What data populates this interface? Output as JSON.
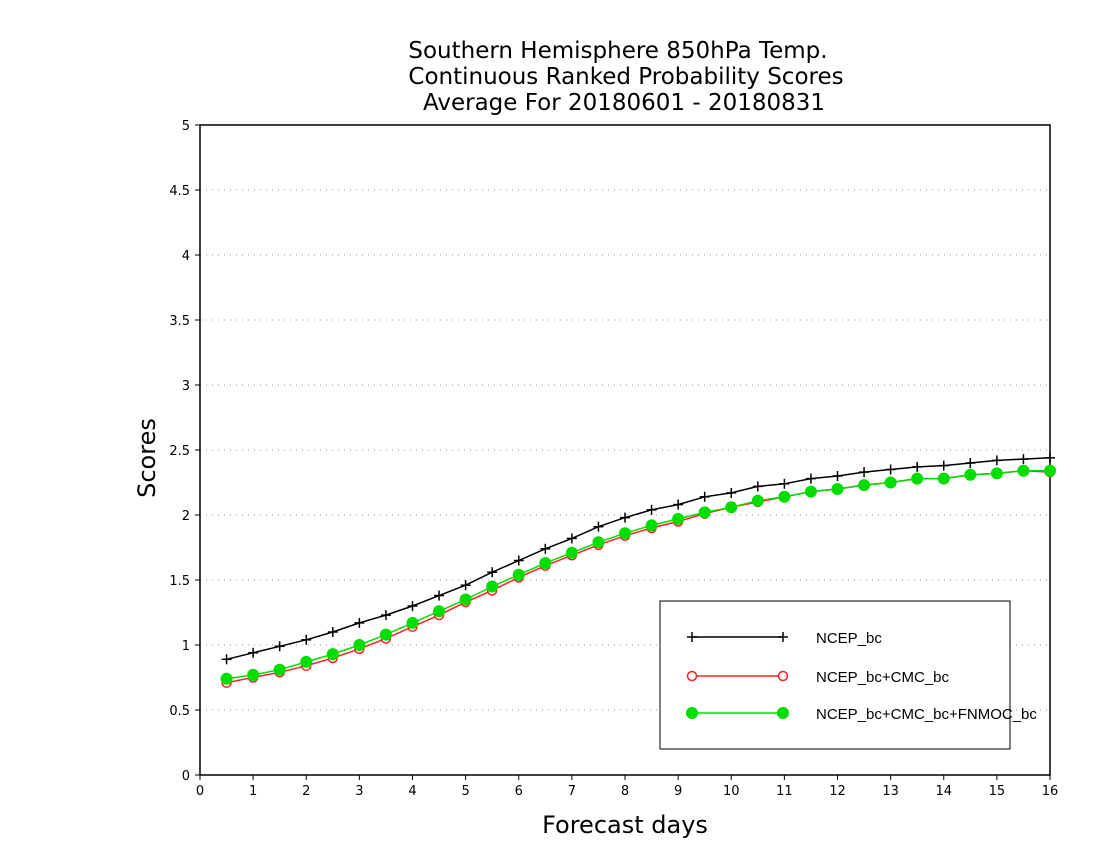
{
  "chart_data": {
    "type": "line",
    "title": [
      "Southern Hemisphere 850hPa Temp.",
      "Continuous Ranked Probability Scores",
      "Average For 20180601 - 20180831"
    ],
    "xlabel": "Forecast days",
    "ylabel": "Scores",
    "xlim": [
      0,
      16
    ],
    "ylim": [
      0,
      5
    ],
    "x_ticks": [
      "0",
      "1",
      "2",
      "3",
      "4",
      "5",
      "6",
      "7",
      "8",
      "9",
      "10",
      "11",
      "12",
      "13",
      "14",
      "15",
      "16"
    ],
    "y_ticks": [
      "0",
      "0.5",
      "1",
      "1.5",
      "2",
      "2.5",
      "3",
      "3.5",
      "4",
      "4.5",
      "5"
    ],
    "grid": true,
    "legend_position": "bottom-right",
    "x": [
      0.5,
      1,
      1.5,
      2,
      2.5,
      3,
      3.5,
      4,
      4.5,
      5,
      5.5,
      6,
      6.5,
      7,
      7.5,
      8,
      8.5,
      9,
      9.5,
      10,
      10.5,
      11,
      11.5,
      12,
      12.5,
      13,
      13.5,
      14,
      14.5,
      15,
      15.5,
      16
    ],
    "series": [
      {
        "name": "NCEP_bc",
        "color": "#000000",
        "marker": "plus",
        "values": [
          0.89,
          0.94,
          0.99,
          1.04,
          1.1,
          1.17,
          1.23,
          1.3,
          1.38,
          1.46,
          1.56,
          1.65,
          1.74,
          1.82,
          1.91,
          1.98,
          2.04,
          2.08,
          2.14,
          2.17,
          2.22,
          2.24,
          2.28,
          2.3,
          2.33,
          2.35,
          2.37,
          2.38,
          2.4,
          2.42,
          2.43,
          2.44
        ]
      },
      {
        "name": "NCEP_bc+CMC_bc",
        "color": "#ff2020",
        "marker": "open-circle",
        "values": [
          0.71,
          0.75,
          0.79,
          0.84,
          0.9,
          0.97,
          1.05,
          1.14,
          1.23,
          1.33,
          1.42,
          1.52,
          1.61,
          1.69,
          1.77,
          1.84,
          1.9,
          1.95,
          2.01,
          2.06,
          2.1,
          2.14,
          2.18,
          2.2,
          2.23,
          2.25,
          2.28,
          2.28,
          2.31,
          2.32,
          2.34,
          2.33
        ]
      },
      {
        "name": "NCEP_bc+CMC_bc+FNMOC_bc",
        "color": "#00dd00",
        "marker": "filled-circle",
        "values": [
          0.74,
          0.77,
          0.81,
          0.87,
          0.93,
          1.0,
          1.08,
          1.17,
          1.26,
          1.35,
          1.45,
          1.54,
          1.63,
          1.71,
          1.79,
          1.86,
          1.92,
          1.97,
          2.02,
          2.06,
          2.11,
          2.14,
          2.18,
          2.2,
          2.23,
          2.25,
          2.28,
          2.28,
          2.31,
          2.32,
          2.34,
          2.34
        ]
      }
    ]
  }
}
